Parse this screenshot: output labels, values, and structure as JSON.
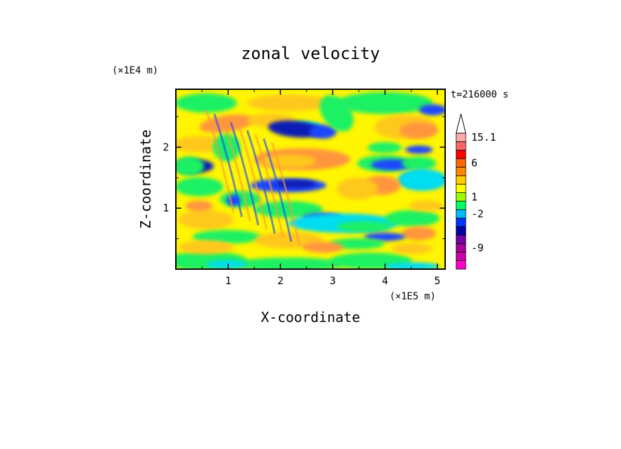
{
  "chart_data": {
    "type": "heatmap",
    "title": "zonal velocity",
    "time_label": "t=216000 s",
    "xlabel": "X-coordinate",
    "ylabel": "Z-coordinate",
    "x_unit": "(×1E5 m)",
    "y_unit": "(×1E4 m)",
    "xlim": [
      0,
      5.15
    ],
    "ylim": [
      0,
      2.95
    ],
    "x_ticks": [
      {
        "value": 1,
        "label": "1"
      },
      {
        "value": 2,
        "label": "2"
      },
      {
        "value": 3,
        "label": "3"
      },
      {
        "value": 4,
        "label": "4"
      },
      {
        "value": 5,
        "label": "5"
      }
    ],
    "y_ticks": [
      {
        "value": 1,
        "label": "1"
      },
      {
        "value": 2,
        "label": "2"
      }
    ],
    "colorbar": {
      "levels": [
        {
          "color": "#ff00cc"
        },
        {
          "color": "#cc00aa"
        },
        {
          "color": "#aa0099"
        },
        {
          "color": "#7700aa"
        },
        {
          "color": "#0000aa"
        },
        {
          "color": "#0033ff"
        },
        {
          "color": "#00bbff"
        },
        {
          "color": "#00ff66"
        },
        {
          "color": "#99ff00"
        },
        {
          "color": "#ffff00"
        },
        {
          "color": "#ffcc00"
        },
        {
          "color": "#ff8800"
        },
        {
          "color": "#ff6600"
        },
        {
          "color": "#ff0000"
        },
        {
          "color": "#ff6666"
        },
        {
          "color": "#ffaaaa"
        }
      ],
      "labels": [
        {
          "value": -9,
          "label": "-9"
        },
        {
          "value": -2,
          "label": "-2"
        },
        {
          "value": 1,
          "label": "1"
        },
        {
          "value": 6,
          "label": "6"
        },
        {
          "value": 15.1,
          "label": "15.1"
        }
      ]
    },
    "field_colors": {
      "blue_dark": "#0a1eb4",
      "blue": "#1e46ff",
      "cyan": "#00dcf0",
      "green": "#1ef064",
      "yellow": "#fff500",
      "gold": "#ffc81e",
      "orange": "#ff963c",
      "red": "#ff5a3c"
    }
  }
}
